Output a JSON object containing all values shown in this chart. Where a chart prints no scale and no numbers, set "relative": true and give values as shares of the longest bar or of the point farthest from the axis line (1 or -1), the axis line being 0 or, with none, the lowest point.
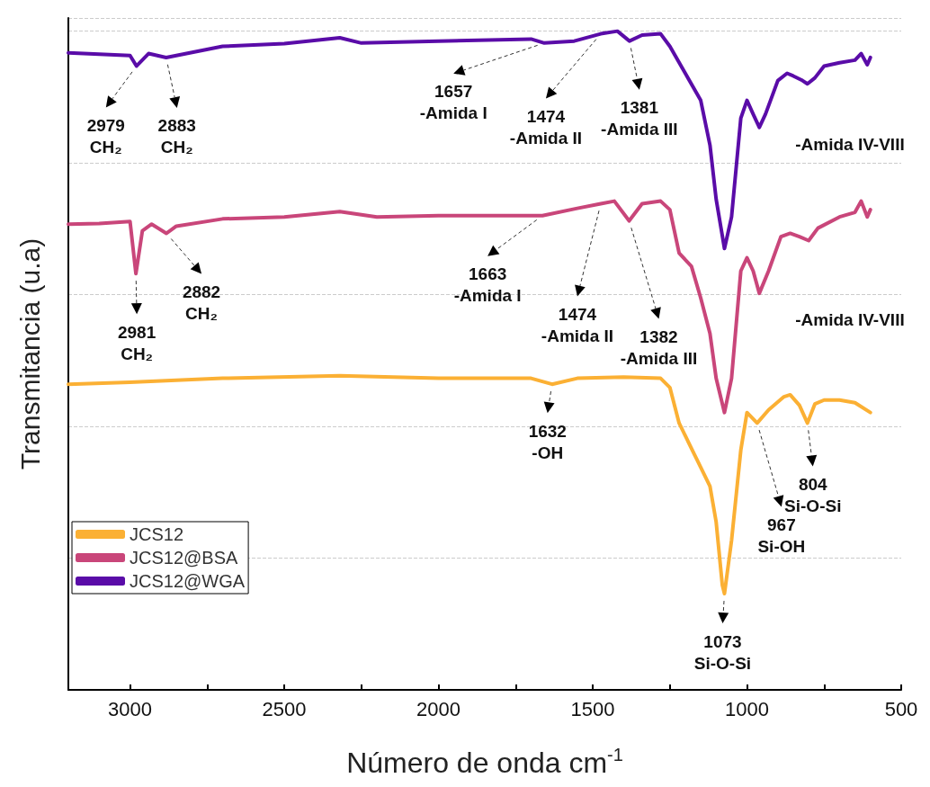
{
  "chart_data": {
    "type": "line",
    "relative": true,
    "xlabel": "Número de onda cm$^{-1}$",
    "ylabel": "Transmitancia (u.a)",
    "xlim": [
      3200,
      500
    ],
    "xticks": [
      3000,
      {
        "value": 2750,
        "label": null
      },
      2500,
      {
        "value": 2250,
        "label": null
      },
      2000,
      {
        "value": 1750,
        "label": null
      },
      1500,
      {
        "value": 1250,
        "label": null
      },
      1000,
      {
        "value": 750,
        "label": null
      },
      500
    ],
    "grid": "y",
    "legend": "bottom left",
    "marker": "none",
    "line_style": "solid",
    "series": [
      {
        "name": "JCS12",
        "color": "#fbb034",
        "x": [
          3200,
          3000,
          2700,
          2320,
          2000,
          1700,
          1632,
          1550,
          1400,
          1280,
          1250,
          1220,
          1170,
          1120,
          1100,
          1080,
          1073,
          1050,
          1020,
          1000,
          967,
          930,
          880,
          860,
          830,
          804,
          780,
          750,
          700,
          650,
          600
        ],
        "values": [
          0.464,
          0.467,
          0.473,
          0.477,
          0.473,
          0.473,
          0.464,
          0.473,
          0.475,
          0.473,
          0.459,
          0.405,
          0.357,
          0.309,
          0.255,
          0.159,
          0.146,
          0.227,
          0.364,
          0.421,
          0.405,
          0.425,
          0.445,
          0.448,
          0.432,
          0.405,
          0.434,
          0.44,
          0.44,
          0.436,
          0.421
        ]
      },
      {
        "name": "JCS12@BSA",
        "color": "#c9467a",
        "x": [
          3200,
          3100,
          3000,
          2981,
          2960,
          2930,
          2882,
          2850,
          2700,
          2500,
          2320,
          2200,
          2000,
          1800,
          1663,
          1550,
          1474,
          1430,
          1382,
          1340,
          1280,
          1250,
          1220,
          1180,
          1150,
          1120,
          1100,
          1073,
          1050,
          1020,
          1000,
          980,
          960,
          930,
          890,
          860,
          830,
          800,
          770,
          700,
          650,
          630,
          610,
          600
        ],
        "values": [
          0.707,
          0.708,
          0.711,
          0.632,
          0.697,
          0.707,
          0.693,
          0.704,
          0.715,
          0.718,
          0.726,
          0.718,
          0.72,
          0.72,
          0.72,
          0.731,
          0.738,
          0.742,
          0.712,
          0.738,
          0.742,
          0.729,
          0.663,
          0.643,
          0.595,
          0.541,
          0.473,
          0.421,
          0.473,
          0.636,
          0.656,
          0.636,
          0.602,
          0.636,
          0.688,
          0.693,
          0.688,
          0.682,
          0.701,
          0.718,
          0.725,
          0.742,
          0.718,
          0.729
        ]
      },
      {
        "name": "JCS12@WGA",
        "color": "#5a0ca8",
        "x": [
          3200,
          3000,
          2979,
          2940,
          2883,
          2700,
          2500,
          2320,
          2250,
          2000,
          1700,
          1657,
          1560,
          1474,
          1420,
          1381,
          1340,
          1280,
          1250,
          1200,
          1150,
          1120,
          1100,
          1073,
          1050,
          1020,
          1000,
          980,
          960,
          940,
          900,
          870,
          850,
          820,
          804,
          780,
          750,
          700,
          650,
          630,
          610,
          600
        ],
        "values": [
          0.967,
          0.963,
          0.947,
          0.966,
          0.96,
          0.977,
          0.981,
          0.99,
          0.982,
          0.985,
          0.988,
          0.982,
          0.985,
          0.996,
          1.0,
          0.985,
          0.994,
          0.996,
          0.977,
          0.936,
          0.895,
          0.827,
          0.745,
          0.67,
          0.718,
          0.868,
          0.895,
          0.874,
          0.854,
          0.874,
          0.925,
          0.936,
          0.932,
          0.925,
          0.92,
          0.929,
          0.947,
          0.952,
          0.956,
          0.966,
          0.949,
          0.96
        ]
      }
    ],
    "annotations": [
      {
        "text": "2979\nCH₂",
        "x": 2979,
        "y": 0.947
      },
      {
        "text": "2883\nCH₂",
        "x": 2883,
        "y": 0.96
      },
      {
        "text": "1657\n-Amida I",
        "x": 1657,
        "y": 0.982
      },
      {
        "text": "1474\n-Amida II",
        "x": 1474,
        "y": 0.996
      },
      {
        "text": "1381\n-Amida III",
        "x": 1381,
        "y": 0.985
      },
      "-Amida IV-VIII",
      {
        "text": "2981\nCH₂",
        "x": 2981,
        "y": 0.632
      },
      {
        "text": "2882\nCH₂",
        "x": 2882,
        "y": 0.693
      },
      {
        "text": "1663\n-Amida I",
        "x": 1663,
        "y": 0.72
      },
      {
        "text": "1474\n-Amida II",
        "x": 1474,
        "y": 0.738
      },
      {
        "text": "1382\n-Amida III",
        "x": 1382,
        "y": 0.712
      },
      "-Amida IV-VIII",
      {
        "text": "1632\n-OH",
        "x": 1632,
        "y": 0.464
      },
      {
        "text": "1073\nSi-O-Si",
        "x": 1073,
        "y": 0.146
      },
      {
        "text": "967\nSi-OH",
        "x": 967,
        "y": 0.405
      },
      {
        "text": "804\nSi-O-Si",
        "x": 804,
        "y": 0.405
      }
    ]
  }
}
